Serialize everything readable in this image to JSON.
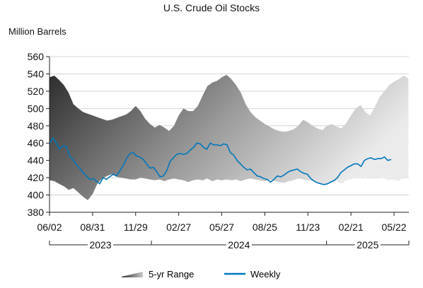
{
  "chart_data": {
    "type": "area",
    "title": "U.S. Crude Oil Stocks",
    "ylabel": "Million Barrels",
    "xlabel": "",
    "ylim": [
      380,
      560
    ],
    "yticks": [
      380,
      400,
      420,
      440,
      460,
      480,
      500,
      520,
      540,
      560
    ],
    "xlim": [
      "2023-06-02",
      "2025-06-22"
    ],
    "xtick_labels": [
      "06/02",
      "08/31",
      "11/29",
      "02/27",
      "05/27",
      "08/25",
      "11/23",
      "02/21",
      "05/22"
    ],
    "xtick_dates": [
      "2023-06-02",
      "2023-08-31",
      "2023-11-29",
      "2024-02-27",
      "2024-05-27",
      "2024-08-25",
      "2024-11-23",
      "2025-02-21",
      "2025-05-22"
    ],
    "year_labels": [
      "2023",
      "2024",
      "2025"
    ],
    "year_bounds": [
      "2023-06-02",
      "2024-01-01",
      "2025-01-01",
      "2025-06-22"
    ],
    "grid": true,
    "legend_position": "bottom",
    "range_series": {
      "name": "5-yr Range",
      "x": [
        "2023-06-02",
        "2023-06-12",
        "2023-06-22",
        "2023-07-02",
        "2023-07-12",
        "2023-07-22",
        "2023-08-01",
        "2023-08-11",
        "2023-08-21",
        "2023-08-31",
        "2023-09-10",
        "2023-09-20",
        "2023-09-30",
        "2023-10-10",
        "2023-10-20",
        "2023-10-30",
        "2023-11-09",
        "2023-11-19",
        "2023-11-29",
        "2023-12-09",
        "2023-12-19",
        "2023-12-29",
        "2024-01-08",
        "2024-01-18",
        "2024-01-28",
        "2024-02-07",
        "2024-02-17",
        "2024-02-27",
        "2024-03-08",
        "2024-03-18",
        "2024-03-28",
        "2024-04-07",
        "2024-04-17",
        "2024-04-27",
        "2024-05-07",
        "2024-05-17",
        "2024-05-27",
        "2024-06-06",
        "2024-06-16",
        "2024-06-26",
        "2024-07-06",
        "2024-07-16",
        "2024-07-26",
        "2024-08-05",
        "2024-08-15",
        "2024-08-25",
        "2024-09-04",
        "2024-09-14",
        "2024-09-24",
        "2024-10-04",
        "2024-10-14",
        "2024-10-24",
        "2024-11-03",
        "2024-11-13",
        "2024-11-23",
        "2024-12-03",
        "2024-12-13",
        "2024-12-23",
        "2025-01-02",
        "2025-01-12",
        "2025-01-22",
        "2025-02-01",
        "2025-02-11",
        "2025-02-21",
        "2025-03-03",
        "2025-03-13",
        "2025-03-23",
        "2025-04-02",
        "2025-04-12",
        "2025-04-22",
        "2025-05-02",
        "2025-05-12",
        "2025-05-22",
        "2025-06-01",
        "2025-06-11",
        "2025-06-21"
      ],
      "high": [
        536,
        538,
        533,
        527,
        518,
        505,
        500,
        496,
        494,
        492,
        490,
        488,
        486,
        487,
        489,
        491,
        493,
        497,
        503,
        497,
        488,
        482,
        478,
        481,
        478,
        474,
        480,
        492,
        500,
        497,
        497,
        503,
        515,
        526,
        530,
        532,
        536,
        539,
        534,
        527,
        518,
        505,
        496,
        490,
        486,
        482,
        479,
        476,
        474,
        473,
        474,
        476,
        480,
        487,
        484,
        480,
        477,
        475,
        480,
        482,
        479,
        477,
        483,
        492,
        500,
        504,
        496,
        492,
        502,
        513,
        520,
        527,
        531,
        534,
        538,
        535
      ],
      "low": [
        417,
        416,
        413,
        410,
        406,
        408,
        403,
        398,
        394,
        401,
        413,
        419,
        422,
        424,
        421,
        420,
        419,
        418,
        418,
        420,
        419,
        418,
        417,
        418,
        416,
        418,
        419,
        418,
        417,
        415,
        417,
        418,
        417,
        419,
        416,
        418,
        417,
        418,
        417,
        418,
        416,
        418,
        419,
        418,
        417,
        416,
        418,
        416,
        415,
        414,
        416,
        417,
        419,
        418,
        417,
        416,
        414,
        413,
        412,
        414,
        416,
        413,
        417,
        418,
        420,
        419,
        422,
        418,
        421,
        420,
        419,
        417,
        418,
        416,
        421,
        419
      ]
    },
    "series": [
      {
        "name": "Weekly",
        "color": "#0077bb",
        "x": [
          "2023-06-02",
          "2023-06-09",
          "2023-06-16",
          "2023-06-23",
          "2023-06-30",
          "2023-07-07",
          "2023-07-14",
          "2023-07-21",
          "2023-07-28",
          "2023-08-04",
          "2023-08-11",
          "2023-08-18",
          "2023-08-25",
          "2023-09-01",
          "2023-09-08",
          "2023-09-15",
          "2023-09-22",
          "2023-09-29",
          "2023-10-06",
          "2023-10-13",
          "2023-10-20",
          "2023-10-27",
          "2023-11-03",
          "2023-11-10",
          "2023-11-17",
          "2023-11-24",
          "2023-12-01",
          "2023-12-08",
          "2023-12-15",
          "2023-12-22",
          "2023-12-29",
          "2024-01-05",
          "2024-01-12",
          "2024-01-19",
          "2024-01-26",
          "2024-02-02",
          "2024-02-09",
          "2024-02-16",
          "2024-02-23",
          "2024-03-01",
          "2024-03-08",
          "2024-03-15",
          "2024-03-22",
          "2024-03-29",
          "2024-04-05",
          "2024-04-12",
          "2024-04-19",
          "2024-04-26",
          "2024-05-03",
          "2024-05-10",
          "2024-05-17",
          "2024-05-24",
          "2024-05-31",
          "2024-06-07",
          "2024-06-14",
          "2024-06-21",
          "2024-06-28",
          "2024-07-05",
          "2024-07-12",
          "2024-07-19",
          "2024-07-26",
          "2024-08-02",
          "2024-08-09",
          "2024-08-16",
          "2024-08-23",
          "2024-08-30",
          "2024-09-06",
          "2024-09-13",
          "2024-09-20",
          "2024-09-27",
          "2024-10-04",
          "2024-10-11",
          "2024-10-18",
          "2024-10-25",
          "2024-11-01",
          "2024-11-08",
          "2024-11-15",
          "2024-11-22",
          "2024-11-29",
          "2024-12-06",
          "2024-12-13",
          "2024-12-20",
          "2024-12-27",
          "2025-01-03",
          "2025-01-10",
          "2025-01-17",
          "2025-01-24",
          "2025-01-31",
          "2025-02-07",
          "2025-02-14",
          "2025-02-21",
          "2025-02-28",
          "2025-03-07",
          "2025-03-14",
          "2025-03-21",
          "2025-03-28",
          "2025-04-04",
          "2025-04-11",
          "2025-04-18",
          "2025-04-25",
          "2025-05-02",
          "2025-05-09",
          "2025-05-16"
        ],
        "values": [
          459,
          466,
          460,
          453,
          457,
          456,
          445,
          441,
          435,
          431,
          426,
          422,
          418,
          419,
          416,
          413,
          420,
          418,
          421,
          424,
          422,
          428,
          434,
          442,
          448,
          449,
          445,
          444,
          441,
          436,
          431,
          432,
          427,
          421,
          422,
          428,
          439,
          443,
          447,
          448,
          447,
          448,
          452,
          455,
          460,
          459,
          455,
          453,
          460,
          458,
          458,
          457,
          459,
          458,
          449,
          446,
          440,
          436,
          432,
          429,
          430,
          426,
          422,
          421,
          419,
          418,
          415,
          418,
          422,
          421,
          423,
          426,
          428,
          429,
          430,
          427,
          425,
          424,
          419,
          416,
          414,
          413,
          412,
          413,
          415,
          417,
          420,
          426,
          429,
          432,
          434,
          436,
          436,
          433,
          440,
          442,
          443,
          441,
          442,
          442,
          444,
          440,
          441
        ]
      }
    ],
    "legend": [
      "5-yr Range",
      "Weekly"
    ]
  }
}
